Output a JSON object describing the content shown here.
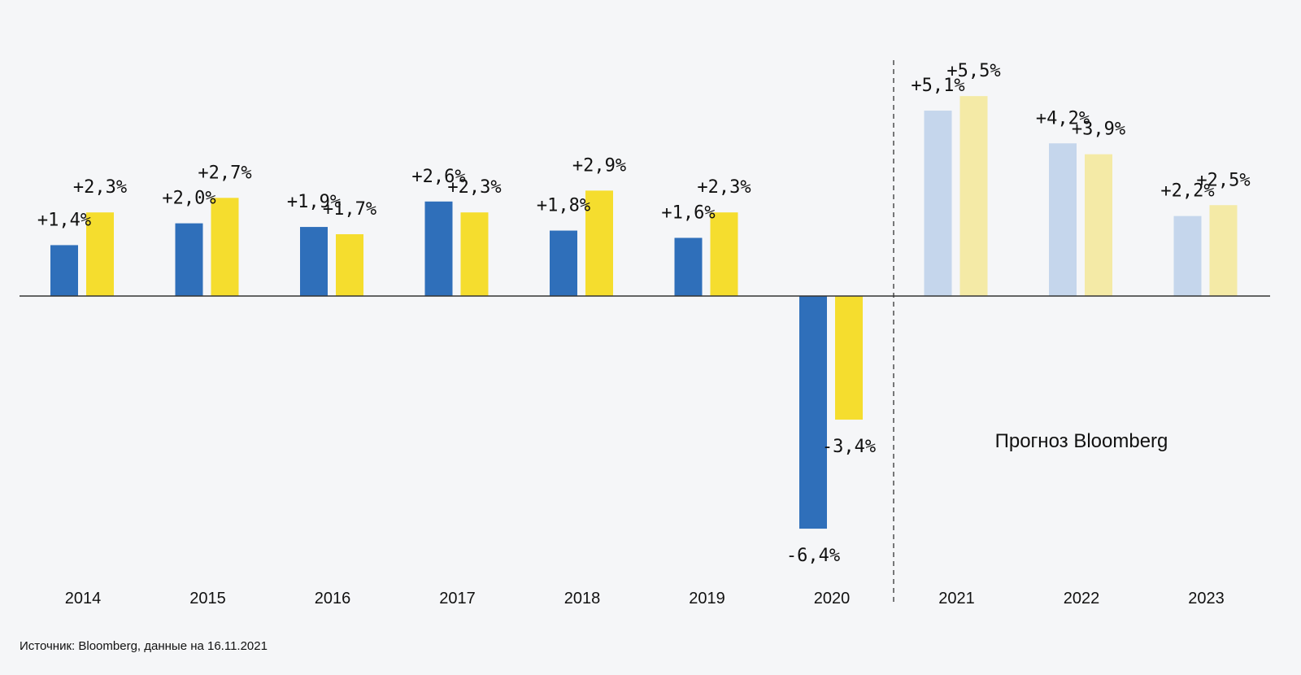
{
  "chart_data": {
    "type": "bar",
    "categories": [
      "2014",
      "2015",
      "2016",
      "2017",
      "2018",
      "2019",
      "2020",
      "2021",
      "2022",
      "2023"
    ],
    "series": [
      {
        "values": [
          1.4,
          2.0,
          1.9,
          2.6,
          1.8,
          1.6,
          -6.4,
          5.1,
          4.2,
          2.2
        ],
        "labels": [
          "+1,4%",
          "+2,0%",
          "+1,9%",
          "+2,6%",
          "+1,8%",
          "+1,6%",
          "-6,4%",
          "+5,1%",
          "+4,2%",
          "+2,2%"
        ],
        "color": "#2f6fba",
        "forecast_color": "#c5d6ec"
      },
      {
        "values": [
          2.3,
          2.7,
          1.7,
          2.3,
          2.9,
          2.3,
          -3.4,
          5.5,
          3.9,
          2.5
        ],
        "labels": [
          "+2,3%",
          "+2,7%",
          "+1,7%",
          "+2,3%",
          "+2,9%",
          "+2,3%",
          "-3,4%",
          "+5,5%",
          "+3,9%",
          "+2,5%"
        ],
        "color": "#f5dd2e",
        "forecast_color": "#f4eaa6"
      }
    ],
    "forecast_start_index": 7,
    "forecast_label": "Прогноз Bloomberg",
    "ylim": [
      -7.5,
      6.5
    ],
    "grid": false,
    "legend": "none"
  },
  "source_note": "Источник: Bloomberg, данные на 16.11.2021"
}
